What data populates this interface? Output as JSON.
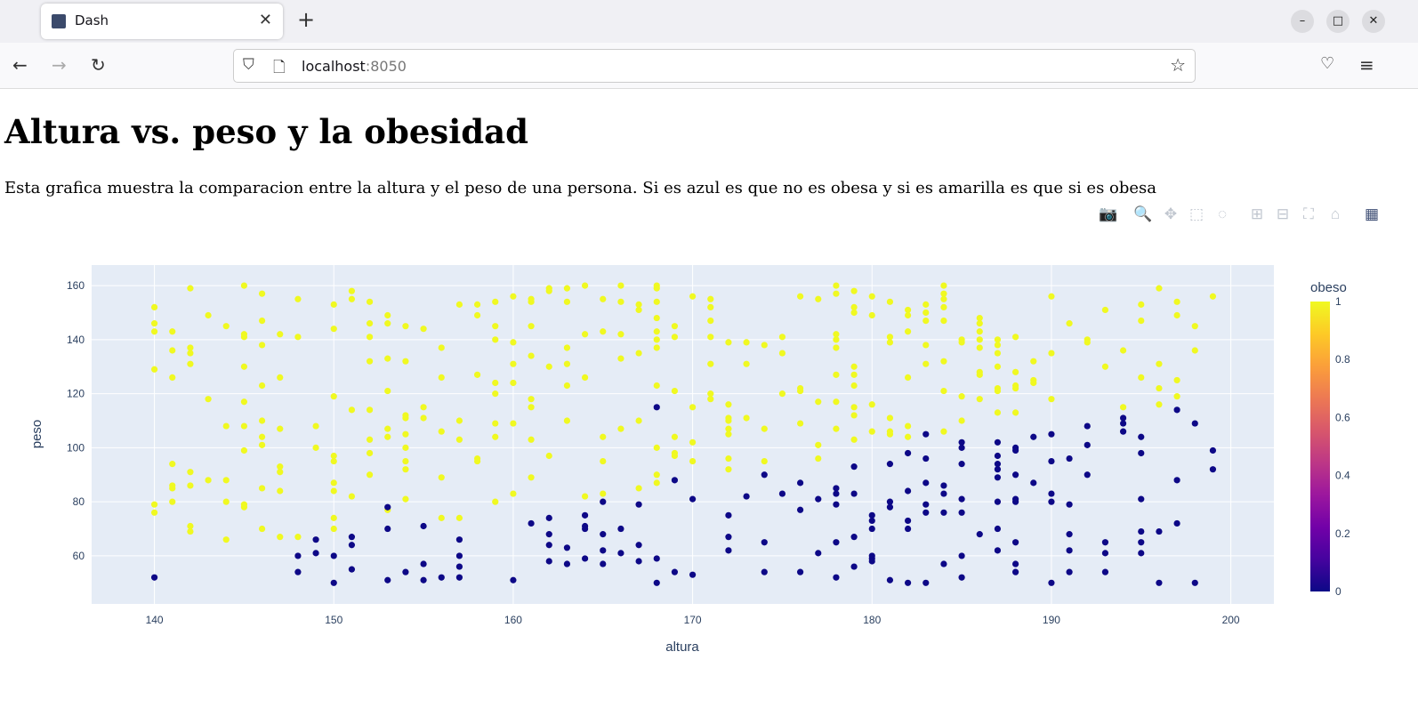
{
  "browser": {
    "tab_title": "Dash",
    "url_host": "localhost",
    "url_port": ":8050"
  },
  "page": {
    "title": "Altura vs. peso y la obesidad",
    "description": "Esta grafica muestra la comparacion entre la altura y el peso de una persona. Si es azul es que no es obesa y si es amarilla es que si es obesa"
  },
  "modebar": [
    "camera-icon",
    "zoom-icon",
    "pan-icon",
    "box-select-icon",
    "lasso-icon",
    "zoom-in-icon",
    "zoom-out-icon",
    "autoscale-icon",
    "reset-axes-icon",
    "plotly-logo-icon"
  ],
  "chart_data": {
    "type": "scatter",
    "xlabel": "altura",
    "ylabel": "peso",
    "xlim": [
      136.5,
      202.4
    ],
    "ylim": [
      42.2,
      167.6
    ],
    "xticks": [
      140,
      150,
      160,
      170,
      180,
      190,
      200
    ],
    "yticks": [
      60,
      80,
      100,
      120,
      140,
      160
    ],
    "grid": true,
    "colorbar": {
      "title": "obeso",
      "range": [
        0,
        1
      ],
      "ticks": [
        "0",
        "0.2",
        "0.4",
        "0.6",
        "0.8",
        "1"
      ],
      "colorscale": [
        "#0d0887",
        "#46039f",
        "#7201a8",
        "#9c179e",
        "#bd3786",
        "#d8576b",
        "#ed7953",
        "#fb9f3a",
        "#fdca26",
        "#f0f921"
      ]
    },
    "colors": {
      "obeso_0": "#0d0887",
      "obeso_1": "#f0f921",
      "plot_bg": "#e5ecf6"
    },
    "columns": [
      {
        "altura": 140,
        "obeso_1": [
          152,
          146,
          143,
          129,
          79,
          76
        ],
        "obeso_0": [
          52
        ]
      },
      {
        "altura": 141,
        "obeso_1": [
          143,
          136,
          126,
          94,
          86,
          85,
          80
        ],
        "obeso_0": []
      },
      {
        "altura": 142,
        "obeso_1": [
          159,
          137,
          135,
          131,
          91,
          86,
          71,
          69
        ],
        "obeso_0": []
      },
      {
        "altura": 143,
        "obeso_1": [
          149,
          118,
          88
        ],
        "obeso_0": []
      },
      {
        "altura": 144,
        "obeso_1": [
          145,
          108,
          88,
          80,
          66
        ],
        "obeso_0": []
      },
      {
        "altura": 145,
        "obeso_1": [
          160,
          142,
          141,
          130,
          117,
          108,
          99,
          79,
          78
        ],
        "obeso_0": []
      },
      {
        "altura": 146,
        "obeso_1": [
          157,
          147,
          138,
          123,
          110,
          104,
          101,
          85,
          70
        ],
        "obeso_0": []
      },
      {
        "altura": 147,
        "obeso_1": [
          142,
          126,
          107,
          93,
          91,
          84,
          67
        ],
        "obeso_0": []
      },
      {
        "altura": 148,
        "obeso_1": [
          155,
          141,
          67
        ],
        "obeso_0": [
          60,
          54
        ]
      },
      {
        "altura": 149,
        "obeso_1": [
          108,
          100
        ],
        "obeso_0": [
          66,
          61
        ]
      },
      {
        "altura": 150,
        "obeso_1": [
          153,
          144,
          119,
          97,
          95,
          87,
          84,
          74,
          70
        ],
        "obeso_0": [
          60,
          50
        ]
      },
      {
        "altura": 151,
        "obeso_1": [
          158,
          155,
          114,
          82
        ],
        "obeso_0": [
          67,
          64,
          55
        ]
      },
      {
        "altura": 152,
        "obeso_1": [
          154,
          146,
          141,
          132,
          114,
          103,
          98,
          90
        ],
        "obeso_0": []
      },
      {
        "altura": 153,
        "obeso_1": [
          149,
          146,
          133,
          121,
          107,
          104,
          77
        ],
        "obeso_0": [
          78,
          70,
          51
        ]
      },
      {
        "altura": 154,
        "obeso_1": [
          145,
          132,
          112,
          111,
          105,
          100,
          95,
          92,
          81
        ],
        "obeso_0": [
          54
        ]
      },
      {
        "altura": 155,
        "obeso_1": [
          144,
          115,
          111
        ],
        "obeso_0": [
          71,
          57,
          51
        ]
      },
      {
        "altura": 156,
        "obeso_1": [
          137,
          126,
          106,
          89,
          74
        ],
        "obeso_0": [
          52
        ]
      },
      {
        "altura": 157,
        "obeso_1": [
          153,
          110,
          103,
          74
        ],
        "obeso_0": [
          66,
          60,
          56,
          52
        ]
      },
      {
        "altura": 158,
        "obeso_1": [
          153,
          149,
          127,
          96,
          95
        ],
        "obeso_0": []
      },
      {
        "altura": 159,
        "obeso_1": [
          154,
          145,
          140,
          124,
          120,
          109,
          104,
          80
        ],
        "obeso_0": []
      },
      {
        "altura": 160,
        "obeso_1": [
          156,
          139,
          131,
          124,
          109,
          83
        ],
        "obeso_0": [
          51
        ]
      },
      {
        "altura": 161,
        "obeso_1": [
          155,
          154,
          145,
          134,
          118,
          115,
          103,
          89
        ],
        "obeso_0": [
          72
        ]
      },
      {
        "altura": 162,
        "obeso_1": [
          159,
          158,
          130,
          97
        ],
        "obeso_0": [
          74,
          68,
          64,
          58
        ]
      },
      {
        "altura": 163,
        "obeso_1": [
          159,
          154,
          137,
          131,
          123,
          110
        ],
        "obeso_0": [
          63,
          57
        ]
      },
      {
        "altura": 164,
        "obeso_1": [
          160,
          142,
          126,
          82
        ],
        "obeso_0": [
          75,
          71,
          70,
          59
        ]
      },
      {
        "altura": 165,
        "obeso_1": [
          155,
          143,
          104,
          95,
          83
        ],
        "obeso_0": [
          80,
          68,
          62,
          57
        ]
      },
      {
        "altura": 166,
        "obeso_1": [
          160,
          154,
          142,
          133,
          107
        ],
        "obeso_0": [
          70,
          61
        ]
      },
      {
        "altura": 167,
        "obeso_1": [
          153,
          151,
          135,
          110,
          85
        ],
        "obeso_0": [
          79,
          64,
          58
        ]
      },
      {
        "altura": 168,
        "obeso_1": [
          160,
          159,
          154,
          148,
          143,
          140,
          137,
          123,
          100,
          90,
          87
        ],
        "obeso_0": [
          115,
          59,
          50
        ]
      },
      {
        "altura": 169,
        "obeso_1": [
          145,
          141,
          121,
          104,
          98,
          97
        ],
        "obeso_0": [
          88,
          54
        ]
      },
      {
        "altura": 170,
        "obeso_1": [
          156,
          115,
          102,
          95
        ],
        "obeso_0": [
          81,
          53
        ]
      },
      {
        "altura": 171,
        "obeso_1": [
          155,
          152,
          147,
          141,
          131,
          120,
          118
        ],
        "obeso_0": []
      },
      {
        "altura": 172,
        "obeso_1": [
          139,
          116,
          111,
          110,
          107,
          105,
          96,
          92
        ],
        "obeso_0": [
          75,
          67,
          62
        ]
      },
      {
        "altura": 173,
        "obeso_1": [
          139,
          131,
          111
        ],
        "obeso_0": [
          82
        ]
      },
      {
        "altura": 174,
        "obeso_1": [
          138,
          107,
          95
        ],
        "obeso_0": [
          90,
          65,
          54
        ]
      },
      {
        "altura": 175,
        "obeso_1": [
          141,
          135,
          120
        ],
        "obeso_0": [
          83
        ]
      },
      {
        "altura": 176,
        "obeso_1": [
          156,
          122,
          121,
          109
        ],
        "obeso_0": [
          87,
          77,
          54
        ]
      },
      {
        "altura": 177,
        "obeso_1": [
          155,
          117,
          101,
          96
        ],
        "obeso_0": [
          81,
          61
        ]
      },
      {
        "altura": 178,
        "obeso_1": [
          160,
          157,
          142,
          140,
          137,
          127,
          117,
          107
        ],
        "obeso_0": [
          85,
          83,
          79,
          65,
          52
        ]
      },
      {
        "altura": 179,
        "obeso_1": [
          158,
          152,
          150,
          130,
          127,
          123,
          115,
          112,
          103
        ],
        "obeso_0": [
          93,
          83,
          67,
          56
        ]
      },
      {
        "altura": 180,
        "obeso_1": [
          156,
          149,
          116,
          106
        ],
        "obeso_0": [
          75,
          73,
          70,
          60,
          59,
          58
        ]
      },
      {
        "altura": 181,
        "obeso_1": [
          154,
          141,
          139,
          111,
          106,
          105
        ],
        "obeso_0": [
          94,
          80,
          78,
          51
        ]
      },
      {
        "altura": 182,
        "obeso_1": [
          151,
          149,
          143,
          126,
          108,
          104
        ],
        "obeso_0": [
          98,
          84,
          73,
          70,
          50
        ]
      },
      {
        "altura": 183,
        "obeso_1": [
          153,
          150,
          147,
          138,
          131
        ],
        "obeso_0": [
          105,
          96,
          87,
          79,
          76,
          50
        ]
      },
      {
        "altura": 184,
        "obeso_1": [
          160,
          157,
          155,
          152,
          147,
          132,
          121,
          106
        ],
        "obeso_0": [
          86,
          83,
          76,
          57
        ]
      },
      {
        "altura": 185,
        "obeso_1": [
          140,
          139,
          119,
          110
        ],
        "obeso_0": [
          102,
          100,
          94,
          81,
          76,
          60,
          52
        ]
      },
      {
        "altura": 186,
        "obeso_1": [
          148,
          146,
          143,
          140,
          137,
          128,
          127,
          118
        ],
        "obeso_0": [
          68
        ]
      },
      {
        "altura": 187,
        "obeso_1": [
          140,
          138,
          135,
          130,
          122,
          121,
          113
        ],
        "obeso_0": [
          102,
          97,
          94,
          92,
          89,
          80,
          70,
          62
        ]
      },
      {
        "altura": 188,
        "obeso_1": [
          141,
          128,
          123,
          122,
          113
        ],
        "obeso_0": [
          100,
          99,
          90,
          81,
          80,
          65,
          57,
          54
        ]
      },
      {
        "altura": 189,
        "obeso_1": [
          132,
          125,
          124
        ],
        "obeso_0": [
          104,
          87
        ]
      },
      {
        "altura": 190,
        "obeso_1": [
          156,
          135,
          118
        ],
        "obeso_0": [
          105,
          95,
          83,
          80,
          50
        ]
      },
      {
        "altura": 191,
        "obeso_1": [
          146
        ],
        "obeso_0": [
          96,
          79,
          68,
          62,
          54
        ]
      },
      {
        "altura": 192,
        "obeso_1": [
          140,
          139
        ],
        "obeso_0": [
          108,
          101,
          90
        ]
      },
      {
        "altura": 193,
        "obeso_1": [
          151,
          130
        ],
        "obeso_0": [
          65,
          61,
          54
        ]
      },
      {
        "altura": 194,
        "obeso_1": [
          136,
          115
        ],
        "obeso_0": [
          111,
          109,
          106
        ]
      },
      {
        "altura": 195,
        "obeso_1": [
          153,
          147,
          126
        ],
        "obeso_0": [
          104,
          98,
          81,
          69,
          65,
          61
        ]
      },
      {
        "altura": 196,
        "obeso_1": [
          159,
          131,
          122,
          116
        ],
        "obeso_0": [
          69,
          50
        ]
      },
      {
        "altura": 197,
        "obeso_1": [
          154,
          149,
          125,
          119
        ],
        "obeso_0": [
          114,
          88,
          72
        ]
      },
      {
        "altura": 198,
        "obeso_1": [
          145,
          136
        ],
        "obeso_0": [
          109,
          50
        ]
      },
      {
        "altura": 199,
        "obeso_1": [
          156
        ],
        "obeso_0": [
          99,
          92
        ]
      }
    ]
  }
}
